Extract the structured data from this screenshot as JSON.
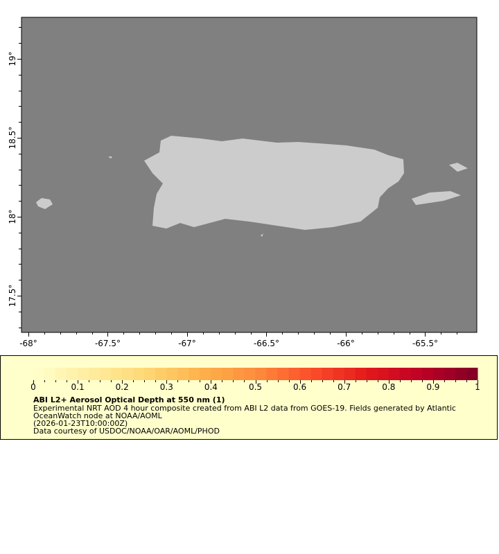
{
  "map": {
    "ocean_color": "#808080",
    "land_color": "#cccccc",
    "lat_labels": [
      "19°",
      "18.5°",
      "18°",
      "17.5°"
    ],
    "lat_values": [
      19,
      18.5,
      18,
      17.5
    ],
    "lon_labels": [
      "-68°",
      "-67.5°",
      "-67°",
      "-66.5°",
      "-66°",
      "-65.5°"
    ],
    "lon_values": [
      -68,
      -67.5,
      -67,
      -66.5,
      -66,
      -65.5
    ]
  },
  "legend": {
    "colorbar_labels": [
      "0",
      "0.1",
      "0.2",
      "0.3",
      "0.4",
      "0.5",
      "0.6",
      "0.7",
      "0.8",
      "0.9",
      "1"
    ],
    "colorbar_range": [
      0,
      1
    ],
    "colormap": [
      "#ffffcc",
      "#ffeda0",
      "#fed976",
      "#feb24c",
      "#fd8d3c",
      "#fc4e2a",
      "#e31a1c",
      "#bd0026",
      "#800026"
    ],
    "title": "ABI L2+ Aerosol Optical Depth at 550 nm (1)",
    "line1": "Experimental NRT AOD 4 hour composite created from ABI L2 data from GOES-19. Fields generated by Atlantic",
    "line2": "OceanWatch node at NOAA/AOML",
    "line3": "(2026-01-23T10:00:00Z)",
    "line4": "Data courtesy of USDOC/NOAA/OAR/AOML/PHOD"
  }
}
